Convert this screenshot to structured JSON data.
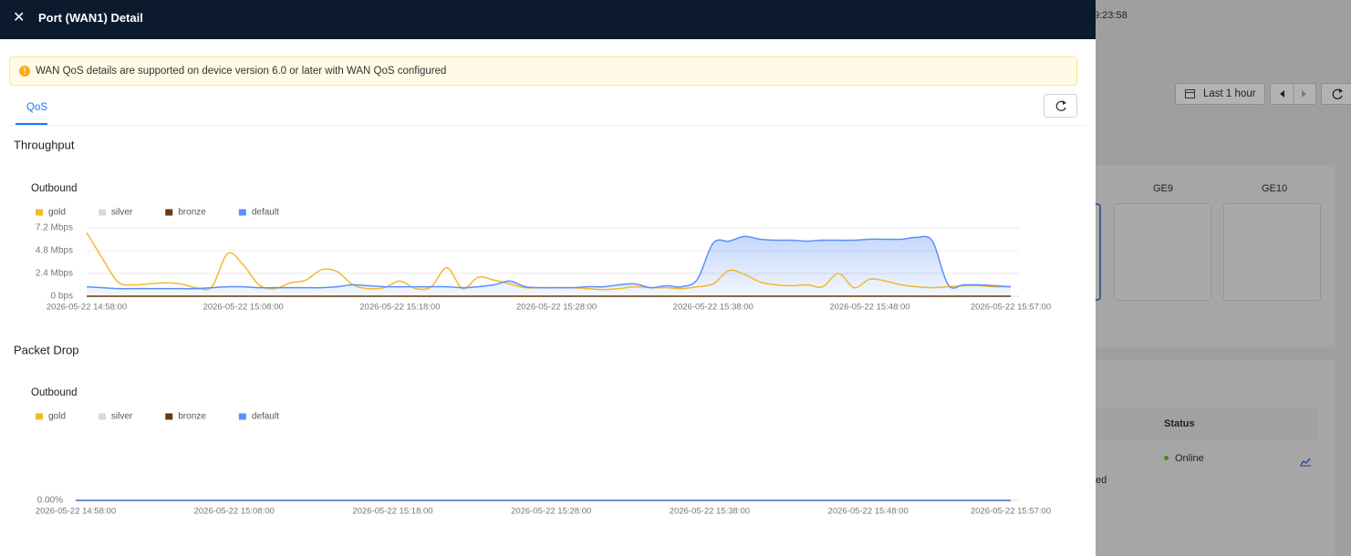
{
  "header": {
    "title": "Port (WAN1) Detail"
  },
  "notice": "WAN QoS details are supported on device version 6.0 or later with WAN QoS configured",
  "tabs": [
    "QoS"
  ],
  "background": {
    "clock": "9:23:58",
    "time_range": "Last 1 hour",
    "ports": [
      "GE9",
      "GE10"
    ],
    "table_header": "Status",
    "status": "Online",
    "row_text": "ed"
  },
  "chart_data": [
    {
      "type": "line",
      "title": "Throughput",
      "subtitle": "Outbound",
      "grid": true,
      "categories": [
        "2026-05-22 14:58:00",
        null,
        null,
        null,
        null,
        null,
        null,
        null,
        null,
        null,
        "2026-05-22 15:08:00",
        null,
        null,
        null,
        null,
        null,
        null,
        null,
        null,
        null,
        "2026-05-22 15:18:00",
        null,
        null,
        null,
        null,
        null,
        null,
        null,
        null,
        null,
        "2026-05-22 15:28:00",
        null,
        null,
        null,
        null,
        null,
        null,
        null,
        null,
        null,
        "2026-05-22 15:38:00",
        null,
        null,
        null,
        null,
        null,
        null,
        null,
        null,
        null,
        "2026-05-22 15:48:00",
        null,
        null,
        null,
        null,
        null,
        null,
        null,
        null,
        "2026-05-22 15:57:00"
      ],
      "ylim": [
        0,
        7.2
      ],
      "yticks": [
        {
          "value": 0,
          "label": "0 bps"
        },
        {
          "value": 2.4,
          "label": "2.4 Mbps"
        },
        {
          "value": 4.8,
          "label": "4.8 Mbps"
        },
        {
          "value": 7.2,
          "label": "7.2 Mbps"
        }
      ],
      "series": [
        {
          "name": "gold",
          "color": "#f2b92b",
          "values": [
            6.7,
            4.0,
            1.5,
            1.2,
            1.3,
            1.4,
            1.3,
            0.9,
            1.0,
            4.5,
            3.3,
            1.2,
            0.8,
            1.4,
            1.7,
            2.8,
            2.6,
            1.2,
            0.8,
            0.9,
            1.6,
            0.8,
            1.0,
            3.0,
            0.8,
            2.0,
            1.7,
            1.3,
            0.9,
            0.9,
            0.9,
            0.9,
            0.8,
            0.7,
            0.8,
            1.0,
            0.9,
            0.9,
            0.8,
            1.0,
            1.3,
            2.7,
            2.3,
            1.5,
            1.2,
            1.1,
            1.2,
            1.0,
            2.4,
            0.9,
            1.8,
            1.6,
            1.2,
            1.0,
            0.9,
            1.0,
            1.1,
            1.1,
            1.0,
            1.0
          ]
        },
        {
          "name": "silver",
          "color": "#d9d9d9",
          "values": [
            0,
            0,
            0,
            0,
            0,
            0,
            0,
            0,
            0,
            0,
            0,
            0,
            0,
            0,
            0,
            0,
            0,
            0,
            0,
            0,
            0,
            0,
            0,
            0,
            0,
            0,
            0,
            0,
            0,
            0,
            0,
            0,
            0,
            0,
            0,
            0,
            0,
            0,
            0,
            0,
            0,
            0,
            0,
            0,
            0,
            0,
            0,
            0,
            0,
            0,
            0,
            0,
            0,
            0,
            0,
            0,
            0,
            0,
            0,
            0
          ]
        },
        {
          "name": "bronze",
          "color": "#6b3a12",
          "values": [
            0,
            0,
            0,
            0,
            0,
            0,
            0,
            0,
            0,
            0,
            0,
            0,
            0,
            0,
            0,
            0,
            0,
            0,
            0,
            0,
            0,
            0,
            0,
            0,
            0,
            0,
            0,
            0,
            0,
            0,
            0,
            0,
            0,
            0,
            0,
            0,
            0,
            0,
            0,
            0,
            0,
            0,
            0,
            0,
            0,
            0,
            0,
            0,
            0,
            0,
            0,
            0,
            0,
            0,
            0,
            0,
            0,
            0,
            0,
            0
          ]
        },
        {
          "name": "default",
          "color": "#5b8ff9",
          "area": true,
          "values": [
            1.0,
            0.9,
            0.8,
            0.8,
            0.8,
            0.8,
            0.8,
            0.8,
            0.9,
            1.0,
            1.0,
            0.9,
            0.9,
            0.9,
            0.9,
            0.9,
            1.0,
            1.2,
            1.1,
            1.0,
            1.0,
            1.0,
            1.0,
            1.0,
            0.9,
            1.0,
            1.2,
            1.6,
            1.0,
            0.9,
            0.9,
            0.9,
            1.0,
            1.0,
            1.2,
            1.3,
            0.9,
            1.1,
            1.0,
            1.8,
            5.6,
            5.8,
            6.3,
            6.0,
            5.9,
            5.9,
            5.8,
            5.9,
            5.9,
            5.9,
            6.0,
            6.0,
            6.0,
            6.2,
            5.8,
            1.2,
            1.2,
            1.2,
            1.1,
            1.0
          ]
        }
      ]
    },
    {
      "type": "line",
      "title": "Packet Drop",
      "subtitle": "Outbound",
      "grid": true,
      "categories": [
        "2026-05-22 14:58:00",
        null,
        null,
        null,
        null,
        null,
        null,
        null,
        null,
        null,
        "2026-05-22 15:08:00",
        null,
        null,
        null,
        null,
        null,
        null,
        null,
        null,
        null,
        "2026-05-22 15:18:00",
        null,
        null,
        null,
        null,
        null,
        null,
        null,
        null,
        null,
        "2026-05-22 15:28:00",
        null,
        null,
        null,
        null,
        null,
        null,
        null,
        null,
        null,
        "2026-05-22 15:38:00",
        null,
        null,
        null,
        null,
        null,
        null,
        null,
        null,
        null,
        "2026-05-22 15:48:00",
        null,
        null,
        null,
        null,
        null,
        null,
        null,
        null,
        "2026-05-22 15:57:00"
      ],
      "ylim": [
        0,
        1
      ],
      "yticks": [
        {
          "value": 0,
          "label": "0.00%"
        }
      ],
      "series": [
        {
          "name": "gold",
          "color": "#f2b92b",
          "values": [
            0,
            0,
            0,
            0,
            0,
            0,
            0,
            0,
            0,
            0,
            0,
            0,
            0,
            0,
            0,
            0,
            0,
            0,
            0,
            0,
            0,
            0,
            0,
            0,
            0,
            0,
            0,
            0,
            0,
            0,
            0,
            0,
            0,
            0,
            0,
            0,
            0,
            0,
            0,
            0,
            0,
            0,
            0,
            0,
            0,
            0,
            0,
            0,
            0,
            0,
            0,
            0,
            0,
            0,
            0,
            0,
            0,
            0,
            0,
            0
          ]
        },
        {
          "name": "silver",
          "color": "#d9d9d9",
          "values": [
            0,
            0,
            0,
            0,
            0,
            0,
            0,
            0,
            0,
            0,
            0,
            0,
            0,
            0,
            0,
            0,
            0,
            0,
            0,
            0,
            0,
            0,
            0,
            0,
            0,
            0,
            0,
            0,
            0,
            0,
            0,
            0,
            0,
            0,
            0,
            0,
            0,
            0,
            0,
            0,
            0,
            0,
            0,
            0,
            0,
            0,
            0,
            0,
            0,
            0,
            0,
            0,
            0,
            0,
            0,
            0,
            0,
            0,
            0,
            0
          ]
        },
        {
          "name": "bronze",
          "color": "#6b3a12",
          "values": [
            0,
            0,
            0,
            0,
            0,
            0,
            0,
            0,
            0,
            0,
            0,
            0,
            0,
            0,
            0,
            0,
            0,
            0,
            0,
            0,
            0,
            0,
            0,
            0,
            0,
            0,
            0,
            0,
            0,
            0,
            0,
            0,
            0,
            0,
            0,
            0,
            0,
            0,
            0,
            0,
            0,
            0,
            0,
            0,
            0,
            0,
            0,
            0,
            0,
            0,
            0,
            0,
            0,
            0,
            0,
            0,
            0,
            0,
            0,
            0
          ]
        },
        {
          "name": "default",
          "color": "#5b8ff9",
          "values": [
            0,
            0,
            0,
            0,
            0,
            0,
            0,
            0,
            0,
            0,
            0,
            0,
            0,
            0,
            0,
            0,
            0,
            0,
            0,
            0,
            0,
            0,
            0,
            0,
            0,
            0,
            0,
            0,
            0,
            0,
            0,
            0,
            0,
            0,
            0,
            0,
            0,
            0,
            0,
            0,
            0,
            0,
            0,
            0,
            0,
            0,
            0,
            0,
            0,
            0,
            0,
            0,
            0,
            0,
            0,
            0,
            0,
            0,
            0,
            0
          ]
        }
      ]
    }
  ]
}
